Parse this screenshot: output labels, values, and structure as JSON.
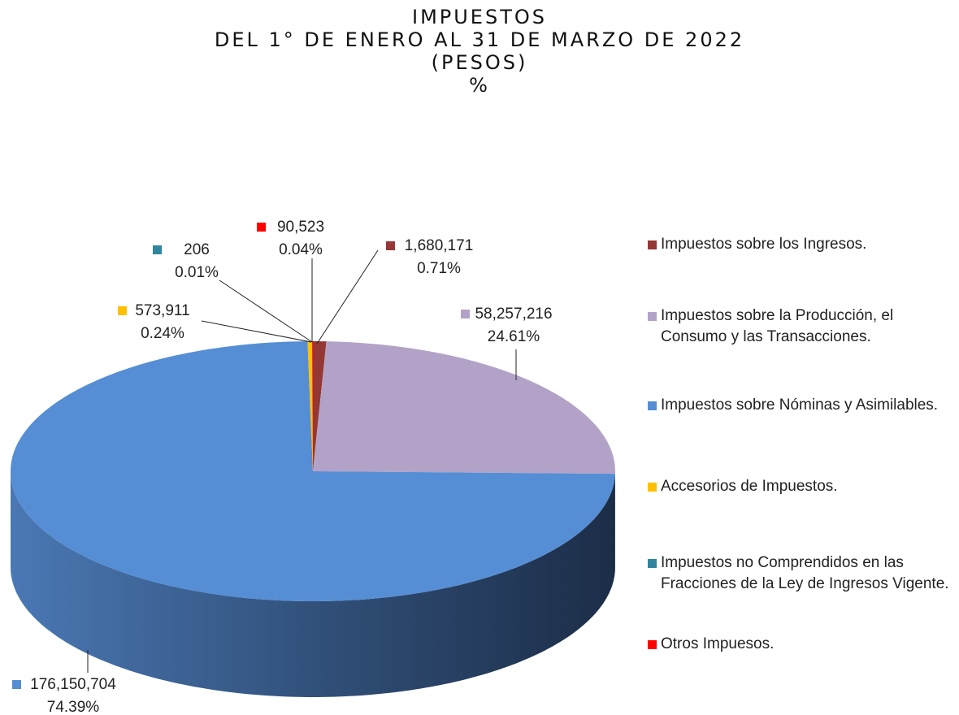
{
  "chart_data": {
    "type": "pie",
    "title": [
      "IMPUESTOS",
      "DEL 1° DE ENERO AL 31 DE MARZO DE 2022",
      "(PESOS)",
      "%"
    ],
    "categories": [
      "Impuestos sobre los Ingresos.",
      "Impuestos sobre la Producción, el Consumo y las Transacciones.",
      "Impuestos sobre Nóminas y Asimilables.",
      "Accesorios de Impuestos.",
      "Impuestos no Comprendidos en las Fracciones de la Ley de Ingresos Vigente.",
      "Otros Impuesos."
    ],
    "values": [
      1680171,
      58257216,
      176150704,
      573911,
      206,
      90523
    ],
    "value_labels": [
      "1,680,171",
      "58,257,216",
      "176,150,704",
      "573,911",
      "206",
      "90,523"
    ],
    "percentages": [
      0.71,
      24.61,
      74.39,
      0.24,
      0.01,
      0.04
    ],
    "percentage_labels": [
      "0.71%",
      "24.61%",
      "74.39%",
      "0.24%",
      "0.01%",
      "0.04%"
    ],
    "colors": [
      "#953735",
      "#b3a2c7",
      "#558ed5",
      "#ffc000",
      "#31859c",
      "#ff0000"
    ],
    "legend": "right"
  }
}
